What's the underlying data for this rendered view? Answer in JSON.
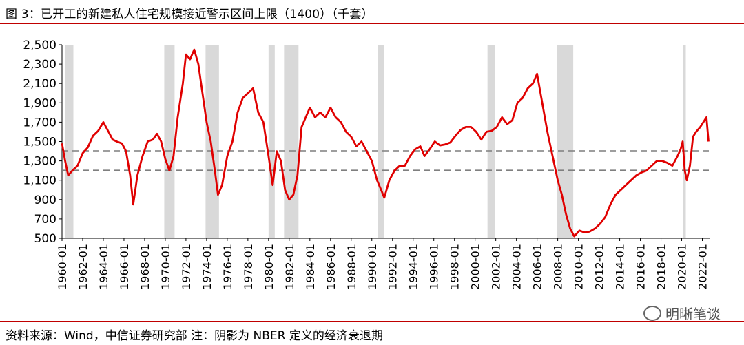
{
  "header": {
    "title": "图 3：已开工的新建私人住宅规模接近警示区间上限（1400）（千套）"
  },
  "footer": {
    "source": "资料来源：Wind，中信证券研究部    注：阴影为 NBER 定义的经济衰退期"
  },
  "watermark": {
    "text": "明晰笔谈",
    "icon": "wechat-icon"
  },
  "chart_data": {
    "type": "line",
    "title": "",
    "xlabel": "",
    "ylabel": "",
    "x_range": [
      1960.0,
      2022.7
    ],
    "ylim": [
      500,
      2500
    ],
    "yticks": [
      500,
      700,
      900,
      1100,
      1300,
      1500,
      1700,
      1900,
      2100,
      2300,
      2500
    ],
    "ytick_labels": [
      "500",
      "700",
      "900",
      "1,100",
      "1,300",
      "1,500",
      "1,700",
      "1,900",
      "2,100",
      "2,300",
      "2,500"
    ],
    "xtick_labels": [
      "1960-01",
      "1962-01",
      "1964-01",
      "1966-01",
      "1968-01",
      "1970-01",
      "1972-01",
      "1974-01",
      "1976-01",
      "1978-01",
      "1980-01",
      "1982-01",
      "1984-01",
      "1986-01",
      "1988-01",
      "1990-01",
      "1992-01",
      "1994-01",
      "1996-01",
      "1998-01",
      "2000-01",
      "2002-01",
      "2004-01",
      "2006-01",
      "2008-01",
      "2010-01",
      "2012-01",
      "2014-01",
      "2016-01",
      "2018-01",
      "2020-01",
      "2022-01"
    ],
    "grid": false,
    "colors": {
      "series": "#e00000",
      "recession": "#d9d9d9",
      "reference": "#7f7f7f"
    },
    "reference_lines": [
      1400,
      1200
    ],
    "recessions": [
      [
        1960.3,
        1961.1
      ],
      [
        1969.9,
        1970.9
      ],
      [
        1973.9,
        1975.2
      ],
      [
        1980.0,
        1980.6
      ],
      [
        1981.5,
        1982.9
      ],
      [
        1990.6,
        1991.2
      ],
      [
        2001.2,
        2001.9
      ],
      [
        2007.9,
        2009.5
      ],
      [
        2020.1,
        2020.4
      ]
    ],
    "series": [
      {
        "x": [
          1960.0,
          1960.3,
          1960.6,
          1961.0,
          1961.5,
          1962.0,
          1962.5,
          1963.0,
          1963.5,
          1964.0,
          1964.5,
          1964.9,
          1965.3,
          1965.8,
          1966.2,
          1966.6,
          1966.9,
          1967.3,
          1967.8,
          1968.3,
          1968.8,
          1969.2,
          1969.6,
          1970.0,
          1970.4,
          1970.8,
          1971.2,
          1971.7,
          1972.0,
          1972.4,
          1972.8,
          1973.2,
          1973.6,
          1974.0,
          1974.4,
          1974.8,
          1975.1,
          1975.5,
          1976.0,
          1976.5,
          1977.0,
          1977.5,
          1978.0,
          1978.5,
          1979.0,
          1979.5,
          1980.0,
          1980.4,
          1980.8,
          1981.2,
          1981.6,
          1982.0,
          1982.4,
          1982.8,
          1983.2,
          1983.6,
          1984.0,
          1984.5,
          1985.0,
          1985.5,
          1986.0,
          1986.5,
          1987.0,
          1987.5,
          1988.0,
          1988.5,
          1989.0,
          1989.5,
          1990.0,
          1990.5,
          1990.9,
          1991.2,
          1991.7,
          1992.2,
          1992.7,
          1993.2,
          1993.7,
          1994.2,
          1994.7,
          1995.1,
          1995.6,
          1996.1,
          1996.6,
          1997.1,
          1997.6,
          1998.1,
          1998.6,
          1999.1,
          1999.6,
          2000.1,
          2000.6,
          2001.1,
          2001.6,
          2002.1,
          2002.6,
          2003.1,
          2003.6,
          2004.1,
          2004.6,
          2005.1,
          2005.6,
          2006.0,
          2006.5,
          2007.0,
          2007.5,
          2008.0,
          2008.4,
          2008.8,
          2009.2,
          2009.6,
          2010.1,
          2010.6,
          2011.1,
          2011.6,
          2012.1,
          2012.6,
          2013.1,
          2013.6,
          2014.1,
          2014.6,
          2015.1,
          2015.6,
          2016.1,
          2016.6,
          2017.1,
          2017.6,
          2018.1,
          2018.6,
          2019.1,
          2019.6,
          2019.9,
          2020.1,
          2020.3,
          2020.5,
          2020.8,
          2021.1,
          2021.4,
          2021.8,
          2022.1,
          2022.4,
          2022.6
        ],
        "values": [
          1480,
          1300,
          1150,
          1200,
          1250,
          1380,
          1440,
          1560,
          1610,
          1700,
          1600,
          1520,
          1500,
          1480,
          1400,
          1150,
          850,
          1150,
          1350,
          1500,
          1520,
          1580,
          1500,
          1320,
          1200,
          1350,
          1750,
          2100,
          2400,
          2350,
          2450,
          2300,
          2000,
          1700,
          1500,
          1200,
          950,
          1050,
          1350,
          1500,
          1800,
          1950,
          2000,
          2050,
          1800,
          1700,
          1350,
          1050,
          1400,
          1300,
          1000,
          900,
          950,
          1150,
          1650,
          1750,
          1850,
          1750,
          1800,
          1750,
          1850,
          1750,
          1700,
          1600,
          1550,
          1450,
          1500,
          1400,
          1300,
          1100,
          1000,
          920,
          1100,
          1200,
          1250,
          1250,
          1350,
          1420,
          1450,
          1350,
          1420,
          1500,
          1460,
          1470,
          1490,
          1560,
          1620,
          1650,
          1650,
          1600,
          1520,
          1600,
          1610,
          1650,
          1750,
          1680,
          1720,
          1900,
          1950,
          2050,
          2100,
          2200,
          1900,
          1600,
          1350,
          1100,
          950,
          750,
          600,
          520,
          580,
          560,
          570,
          600,
          650,
          720,
          850,
          950,
          1000,
          1050,
          1100,
          1150,
          1180,
          1200,
          1250,
          1300,
          1300,
          1280,
          1250,
          1350,
          1420,
          1500,
          1200,
          1100,
          1250,
          1550,
          1600,
          1650,
          1700,
          1750,
          1500
        ]
      }
    ]
  }
}
